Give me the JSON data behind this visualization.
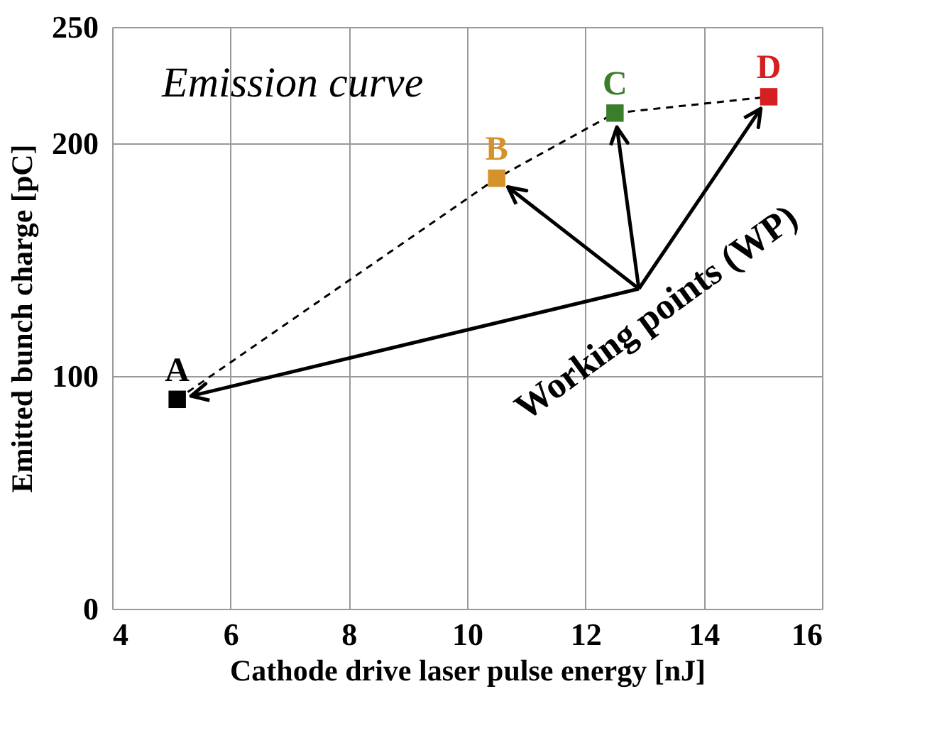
{
  "chart_data": {
    "type": "scatter",
    "xlabel": "Cathode drive laser pulse energy [nJ]",
    "ylabel": "Emitted bunch charge [pC]",
    "xlim": [
      4,
      16
    ],
    "xticks": [
      4,
      6,
      8,
      10,
      12,
      14,
      16
    ],
    "ylim": [
      0,
      250
    ],
    "yticks": [
      0,
      100,
      200,
      250
    ],
    "grid": true,
    "series": [
      {
        "type": "line",
        "color": "#000000",
        "line_style": "dashed",
        "marker": "none",
        "x": [
          5.1,
          10.5,
          12.5,
          15.1
        ],
        "values": [
          90,
          185,
          213,
          220
        ]
      },
      {
        "name": "A",
        "color": "#000000",
        "marker": "square",
        "x": [
          5.1
        ],
        "values": [
          90
        ]
      },
      {
        "name": "B",
        "color": "#d4922a",
        "marker": "square",
        "x": [
          10.5
        ],
        "values": [
          185
        ]
      },
      {
        "name": "C",
        "color": "#3a7d2a",
        "marker": "square",
        "x": [
          12.5
        ],
        "values": [
          213
        ]
      },
      {
        "name": "D",
        "color": "#d42020",
        "marker": "square",
        "x": [
          15.1
        ],
        "values": [
          220
        ]
      }
    ],
    "annotations": [
      "Emission curve",
      "Working points (WP)"
    ]
  }
}
